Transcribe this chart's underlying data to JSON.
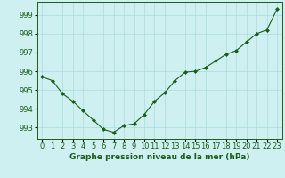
{
  "x": [
    0,
    1,
    2,
    3,
    4,
    5,
    6,
    7,
    8,
    9,
    10,
    11,
    12,
    13,
    14,
    15,
    16,
    17,
    18,
    19,
    20,
    21,
    22,
    23
  ],
  "y": [
    995.7,
    995.5,
    994.8,
    994.4,
    993.9,
    993.4,
    992.9,
    992.75,
    993.1,
    993.2,
    993.7,
    994.4,
    994.85,
    995.5,
    995.95,
    996.0,
    996.2,
    996.55,
    996.9,
    997.1,
    997.55,
    998.0,
    998.2,
    999.3
  ],
  "line_color": "#1a5c1a",
  "marker": "D",
  "marker_size": 2.0,
  "bg_color": "#cef0f0",
  "grid_color": "#aadcdc",
  "ylabel_ticks": [
    993,
    994,
    995,
    996,
    997,
    998,
    999
  ],
  "xlabel": "Graphe pression niveau de la mer (hPa)",
  "ylim": [
    992.4,
    999.7
  ],
  "xlim": [
    -0.5,
    23.5
  ],
  "tick_label_color": "#1a5c1a",
  "xlabel_color": "#1a5c1a",
  "xlabel_fontsize": 6.5,
  "tick_fontsize": 6.0,
  "linewidth": 0.8
}
